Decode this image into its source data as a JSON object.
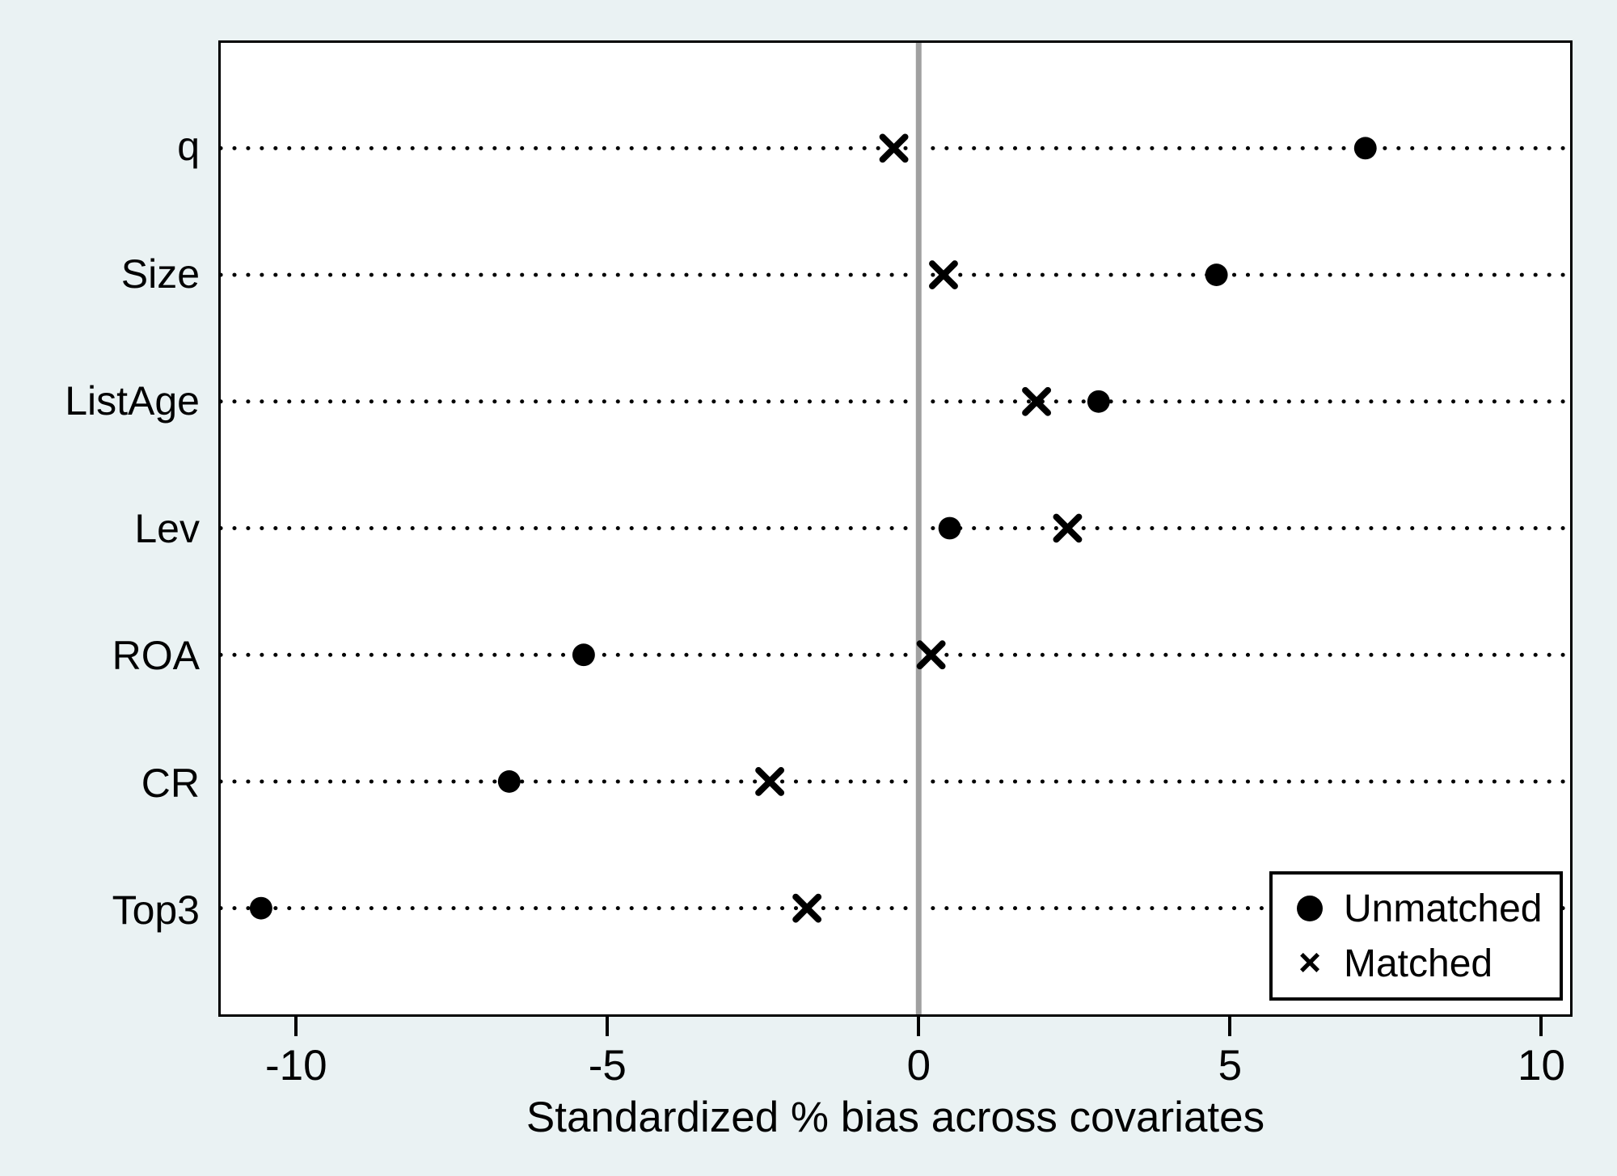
{
  "chart_data": {
    "type": "scatter",
    "subtype": "horizontal-dot-plot",
    "categories": [
      "q",
      "Size",
      "ListAge",
      "Lev",
      "ROA",
      "CR",
      "Top3"
    ],
    "series": [
      {
        "name": "Unmatched",
        "marker": "circle",
        "values": [
          7.2,
          4.8,
          2.9,
          0.5,
          -5.4,
          -6.6,
          -10.6
        ]
      },
      {
        "name": "Matched",
        "marker": "x",
        "values": [
          -0.4,
          0.4,
          1.9,
          2.4,
          0.2,
          -2.4,
          -1.8
        ]
      }
    ],
    "xlabel": "Standardized % bias across covariates",
    "x_ticks": [
      -10,
      -5,
      0,
      5,
      10
    ],
    "xlim": [
      -11.25,
      10.5
    ],
    "reference_line_x": 0,
    "grid": "dotted horizontal leader line per category",
    "legend_position": "inside bottom-right"
  },
  "legend": {
    "items": [
      {
        "label": "Unmatched",
        "marker": "circle"
      },
      {
        "label": "Matched",
        "marker": "x",
        "glyph": "×"
      }
    ]
  },
  "colors": {
    "background": "#eaf2f3",
    "plot_background": "#ffffff",
    "frame": "#000000",
    "marker": "#000000",
    "zero_line": "#a0a0a0",
    "dotted_line": "#000000"
  }
}
